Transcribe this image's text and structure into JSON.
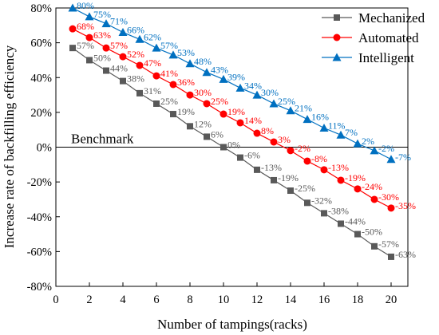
{
  "chart_data": {
    "type": "line",
    "xlabel": "Number of tampings(racks)",
    "ylabel": "Increase rate of backfilling efficiency",
    "xlim": [
      0,
      21
    ],
    "ylim": [
      -80,
      80
    ],
    "x_ticks": [
      0,
      2,
      4,
      6,
      8,
      10,
      12,
      14,
      16,
      18,
      20
    ],
    "y_ticks": [
      -80,
      -60,
      -40,
      -20,
      0,
      20,
      40,
      60,
      80
    ],
    "y_tick_format": "percent",
    "x": [
      1,
      2,
      3,
      4,
      5,
      6,
      7,
      8,
      9,
      10,
      11,
      12,
      13,
      14,
      15,
      16,
      17,
      18,
      19,
      20
    ],
    "reference_line": {
      "y": 0,
      "label": "Benchmark"
    },
    "legend_position": "top-right",
    "series": [
      {
        "name": "Mechanized",
        "color": "#595959",
        "marker": "square",
        "values": [
          57,
          50,
          44,
          38,
          31,
          25,
          19,
          12,
          6,
          0,
          -6,
          -13,
          -19,
          -25,
          -32,
          -38,
          -44,
          -50,
          -57,
          -63
        ],
        "labels": [
          "57%",
          "50%",
          "44%",
          "38%",
          "31%",
          "25%",
          "19%",
          "12%",
          "6%",
          "0%",
          "-6%",
          "-13%",
          "-19%",
          "-25%",
          "-32%",
          "-38%",
          "-44%",
          "-50%",
          "-57%",
          "-63%"
        ]
      },
      {
        "name": "Automated",
        "color": "#ff0000",
        "marker": "circle",
        "values": [
          68,
          63,
          57,
          52,
          47,
          41,
          36,
          30,
          25,
          19,
          14,
          8,
          3,
          -2,
          -8,
          -13,
          -19,
          -24,
          -30,
          -35
        ],
        "labels": [
          "68%",
          "63%",
          "57%",
          "52%",
          "47%",
          "41%",
          "36%",
          "30%",
          "25%",
          "19%",
          "14%",
          "8%",
          "3%",
          "-2%",
          "-8%",
          "-13%",
          "-19%",
          "-24%",
          "-30%",
          "-35%"
        ]
      },
      {
        "name": "Intelligent",
        "color": "#0070c0",
        "marker": "triangle",
        "values": [
          80,
          75,
          71,
          66,
          62,
          57,
          53,
          48,
          43,
          39,
          34,
          30,
          25,
          21,
          16,
          11,
          7,
          2,
          -2,
          -7
        ],
        "labels": [
          "80%",
          "75%",
          "71%",
          "66%",
          "62%",
          "57%",
          "53%",
          "48%",
          "43%",
          "39%",
          "34%",
          "30%",
          "25%",
          "21%",
          "16%",
          "11%",
          "7%",
          "2%",
          "-2%",
          "-7%"
        ]
      }
    ]
  }
}
